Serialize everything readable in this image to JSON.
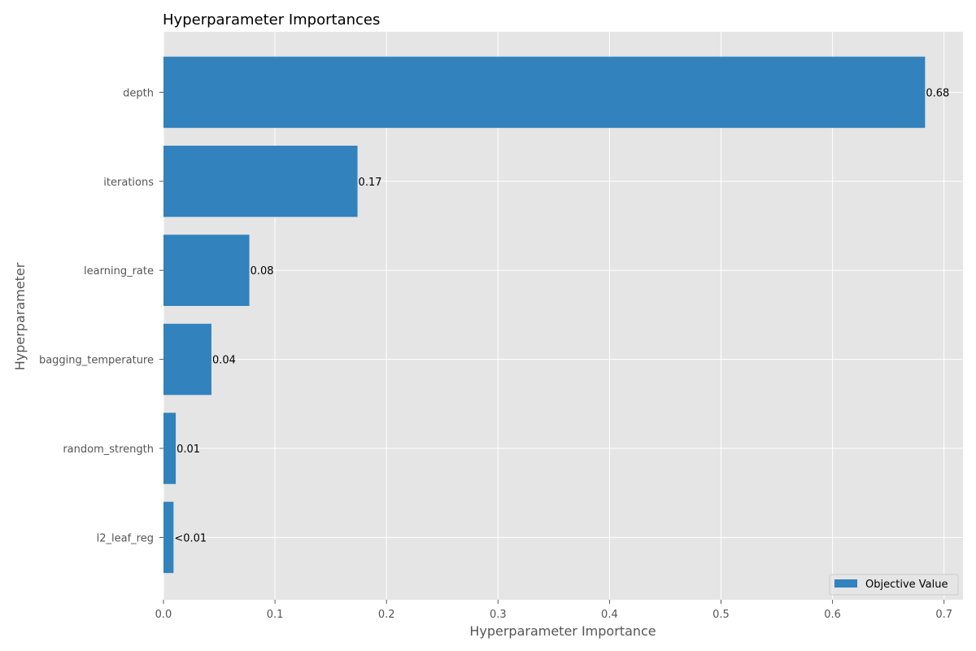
{
  "chart_data": {
    "type": "bar",
    "orientation": "horizontal",
    "title": "Hyperparameter Importances",
    "xlabel": "Hyperparameter Importance",
    "ylabel": "Hyperparameter",
    "categories": [
      "depth",
      "iterations",
      "learning_rate",
      "bagging_temperature",
      "random_strength",
      "l2_leaf_reg"
    ],
    "series": [
      {
        "name": "Objective Value",
        "values": [
          0.683,
          0.174,
          0.077,
          0.043,
          0.011,
          0.009
        ],
        "labels": [
          "0.68",
          "0.17",
          "0.08",
          "0.04",
          "0.01",
          "<0.01"
        ],
        "color": "#3182bd"
      }
    ],
    "xlim": [
      0,
      0.717
    ],
    "xticks": [
      0.0,
      0.1,
      0.2,
      0.3,
      0.4,
      0.5,
      0.6,
      0.7
    ],
    "xtick_labels": [
      "0.0",
      "0.1",
      "0.2",
      "0.3",
      "0.4",
      "0.5",
      "0.6",
      "0.7"
    ],
    "grid": true,
    "legend_position": "bottom-right",
    "plot_background": "#e5e5e5",
    "grid_color": "#ffffff"
  }
}
